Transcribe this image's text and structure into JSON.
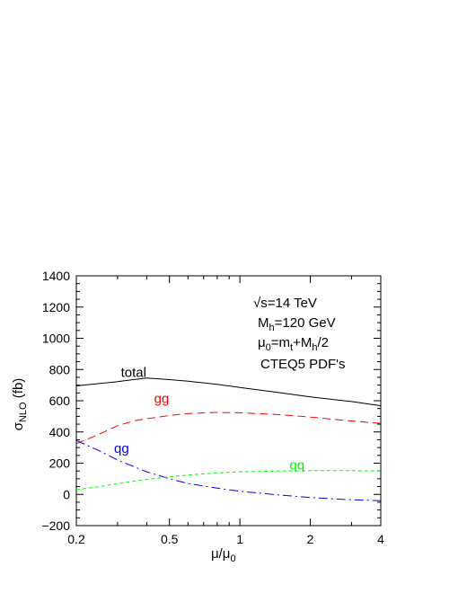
{
  "chart_data": {
    "type": "line",
    "title": "",
    "xlabel": "μ/μ0",
    "ylabel": "σNLO (fb)",
    "xscale": "log",
    "xlim": [
      0.2,
      4
    ],
    "ylim": [
      -200,
      1400
    ],
    "grid": false,
    "x_ticks": [
      {
        "value": 0.2,
        "label": "0.2"
      },
      {
        "value": 0.5,
        "label": "0.5"
      },
      {
        "value": 1,
        "label": "1"
      },
      {
        "value": 2,
        "label": "2"
      },
      {
        "value": 4,
        "label": "4"
      }
    ],
    "y_ticks": [
      {
        "value": -200,
        "label": "−200"
      },
      {
        "value": 0,
        "label": "0"
      },
      {
        "value": 200,
        "label": "200"
      },
      {
        "value": 400,
        "label": "400"
      },
      {
        "value": 600,
        "label": "600"
      },
      {
        "value": 800,
        "label": "800"
      },
      {
        "value": 1000,
        "label": "1000"
      },
      {
        "value": 1200,
        "label": "1200"
      },
      {
        "value": 1400,
        "label": "1400"
      }
    ],
    "series": [
      {
        "name": "total",
        "color": "#000000",
        "dash": "",
        "label_at": [
          0.31,
          752
        ],
        "x": [
          0.2,
          0.25,
          0.3,
          0.35,
          0.4,
          0.5,
          0.6,
          0.8,
          1.0,
          1.5,
          2.0,
          3.0,
          4.0
        ],
        "y": [
          695,
          710,
          722,
          735,
          745,
          735,
          725,
          705,
          685,
          650,
          625,
          595,
          568
        ]
      },
      {
        "name": "gg",
        "color": "#ff0000",
        "dash": "9,5",
        "label_at": [
          0.43,
          585
        ],
        "x": [
          0.2,
          0.25,
          0.3,
          0.35,
          0.4,
          0.5,
          0.6,
          0.8,
          1.0,
          1.5,
          2.0,
          3.0,
          4.0
        ],
        "y": [
          325,
          385,
          440,
          470,
          485,
          505,
          518,
          525,
          523,
          510,
          495,
          470,
          455
        ]
      },
      {
        "name": "qg",
        "color": "#0000ff",
        "dash": "10,4,2,4",
        "label_at": [
          0.29,
          265
        ],
        "x": [
          0.2,
          0.25,
          0.3,
          0.35,
          0.4,
          0.5,
          0.6,
          0.8,
          1.0,
          1.5,
          2.0,
          3.0,
          4.0
        ],
        "y": [
          345,
          280,
          220,
          180,
          145,
          100,
          70,
          40,
          20,
          -5,
          -20,
          -35,
          -40
        ]
      },
      {
        "name": "qq",
        "color": "#00ff00",
        "dash": "4,3",
        "label_at": [
          1.63,
          160
        ],
        "x": [
          0.2,
          0.25,
          0.3,
          0.35,
          0.4,
          0.5,
          0.6,
          0.8,
          1.0,
          1.5,
          2.0,
          3.0,
          4.0
        ],
        "y": [
          30,
          50,
          68,
          84,
          96,
          112,
          124,
          138,
          145,
          150,
          152,
          152,
          150
        ]
      }
    ],
    "annotations": [
      "√s=14 TeV",
      "Mh=120 GeV",
      "μ0=mt+Mh/2",
      "CTEQ5 PDF's"
    ]
  }
}
